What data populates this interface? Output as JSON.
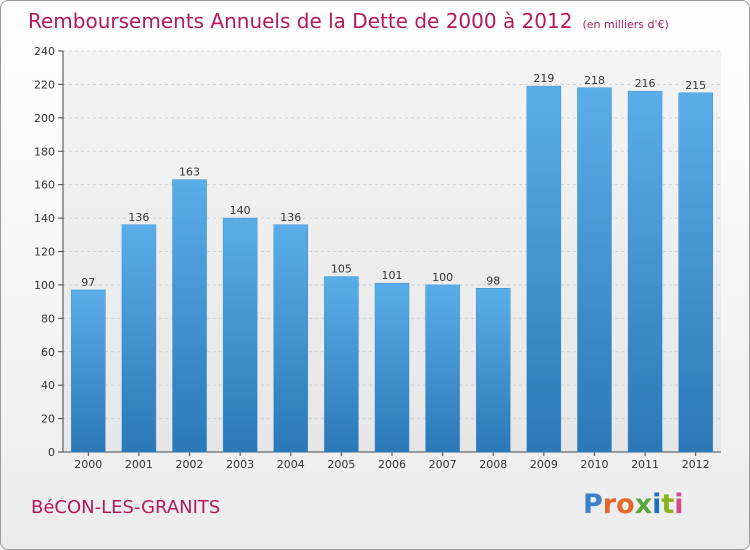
{
  "header": {
    "title": "Remboursements Annuels de la Dette de 2000 à 2012",
    "subtitle": "(en milliers d'€)"
  },
  "footer": {
    "commune": "BéCON-LES-GRANITS"
  },
  "brand": {
    "letters": [
      "P",
      "r",
      "o",
      "x",
      "i",
      "t",
      "i"
    ],
    "colors": [
      "#3a82c8",
      "#e2682a",
      "#e2682a",
      "#58a83c",
      "#1f6fb8",
      "#8ab21c",
      "#d74a8a"
    ]
  },
  "chart_data": {
    "type": "bar",
    "categories": [
      "2000",
      "2001",
      "2002",
      "2003",
      "2004",
      "2005",
      "2006",
      "2007",
      "2008",
      "2009",
      "2010",
      "2011",
      "2012"
    ],
    "values": [
      97,
      136,
      163,
      140,
      136,
      105,
      101,
      100,
      98,
      219,
      218,
      216,
      215
    ],
    "ylim": [
      0,
      240
    ],
    "yticks": [
      0,
      20,
      40,
      60,
      80,
      100,
      120,
      140,
      160,
      180,
      200,
      220,
      240
    ],
    "grid": true,
    "bar_color_top": "#5aaee8",
    "bar_color_bottom": "#2a78b8"
  }
}
